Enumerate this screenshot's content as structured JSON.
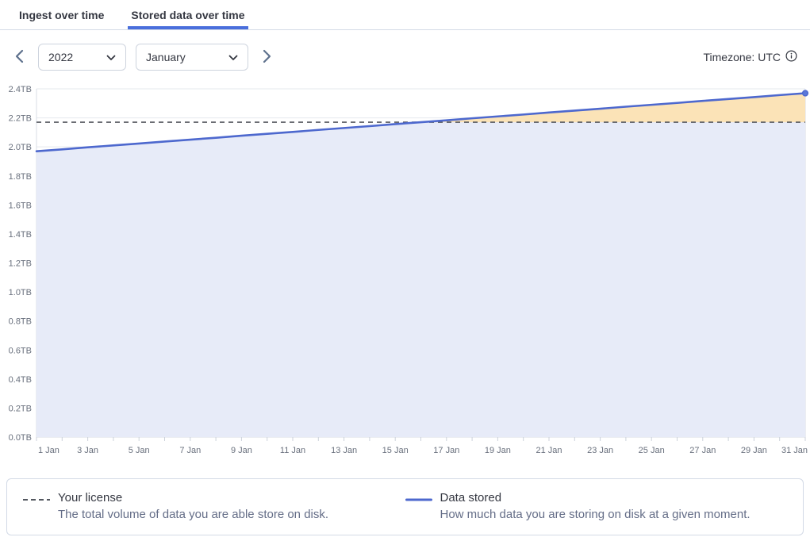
{
  "tabs": [
    {
      "label": "Ingest over time",
      "active": false
    },
    {
      "label": "Stored data over time",
      "active": true
    }
  ],
  "controls": {
    "year": "2022",
    "month": "January",
    "timezone_label": "Timezone: UTC"
  },
  "icons": {
    "prev": "chevron-left",
    "next": "chevron-right",
    "select_caret": "chevron-down",
    "timezone_info": "info-circle"
  },
  "colors": {
    "accent_blue": "#4a6fdc",
    "line_blue": "#4d68ce",
    "area_lavender": "#e7ebf8",
    "overage_orange": "#fbe3b7",
    "license_dash": "#54575e",
    "gridline": "#e4e8ee",
    "axis_border": "#d9dee6",
    "tick": "#ccd2db"
  },
  "chart_data": {
    "type": "line",
    "title": "Stored data over time",
    "unit": "TB",
    "x": [
      "1 Jan",
      "2 Jan",
      "3 Jan",
      "4 Jan",
      "5 Jan",
      "6 Jan",
      "7 Jan",
      "8 Jan",
      "9 Jan",
      "10 Jan",
      "11 Jan",
      "12 Jan",
      "13 Jan",
      "14 Jan",
      "15 Jan",
      "16 Jan",
      "17 Jan",
      "18 Jan",
      "19 Jan",
      "20 Jan",
      "21 Jan",
      "22 Jan",
      "23 Jan",
      "24 Jan",
      "25 Jan",
      "26 Jan",
      "27 Jan",
      "28 Jan",
      "29 Jan",
      "30 Jan",
      "31 Jan"
    ],
    "x_tick_labels": [
      "1 Jan",
      "3 Jan",
      "5 Jan",
      "7 Jan",
      "9 Jan",
      "11 Jan",
      "13 Jan",
      "15 Jan",
      "17 Jan",
      "19 Jan",
      "21 Jan",
      "23 Jan",
      "25 Jan",
      "27 Jan",
      "29 Jan",
      "31 Jan"
    ],
    "y_tick_values": [
      0,
      0.2,
      0.4,
      0.6,
      0.8,
      1.0,
      1.2,
      1.4,
      1.6,
      1.8,
      2.0,
      2.2,
      2.4
    ],
    "y_tick_labels": [
      "0.0TB",
      "0.2TB",
      "0.4TB",
      "0.6TB",
      "0.8TB",
      "1.0TB",
      "1.2TB",
      "1.4TB",
      "1.6TB",
      "1.8TB",
      "2.0TB",
      "2.2TB",
      "2.4TB"
    ],
    "ylim": [
      0,
      2.4
    ],
    "grid": true,
    "legend_position": "bottom",
    "series": [
      {
        "name": "Data stored",
        "type": "line",
        "values": [
          1.97,
          1.983,
          1.997,
          2.01,
          2.023,
          2.037,
          2.05,
          2.063,
          2.077,
          2.09,
          2.103,
          2.117,
          2.13,
          2.143,
          2.157,
          2.17,
          2.183,
          2.197,
          2.21,
          2.223,
          2.237,
          2.25,
          2.263,
          2.277,
          2.29,
          2.303,
          2.317,
          2.33,
          2.343,
          2.357,
          2.37
        ]
      },
      {
        "name": "Your license",
        "type": "threshold-dashed",
        "value": 2.17
      }
    ]
  },
  "legend": {
    "license": {
      "title": "Your license",
      "description": "The total volume of data you are able store on disk."
    },
    "stored": {
      "title": "Data stored",
      "description": "How much data you are storing on disk at a given moment."
    }
  }
}
